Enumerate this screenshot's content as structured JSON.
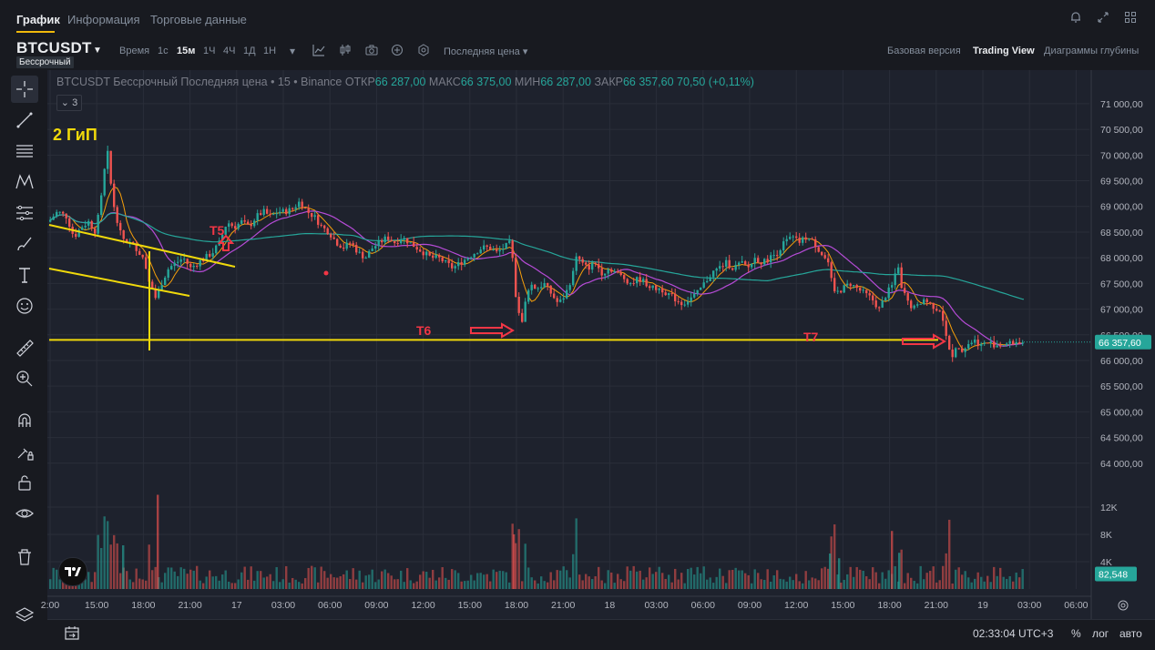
{
  "tabs": [
    "График",
    "Информация",
    "Торговые данные"
  ],
  "symbol": {
    "name": "BTCUSDT",
    "sub": "Бессрочный"
  },
  "timeframes": {
    "label": "Время",
    "items": [
      "1с",
      "15м",
      "1Ч",
      "4Ч",
      "1Д",
      "1Н"
    ],
    "active": "15м"
  },
  "price_type": "Последняя цена",
  "views": [
    "Базовая версия",
    "Trading View",
    "Диаграммы глубины"
  ],
  "active_view": "Trading View",
  "legend": {
    "title": "BTCUSDT Бессрочный Последняя цена • 15 • Binance",
    "o_k": "ОТКР",
    "o_v": "66 287,00",
    "h_k": "МАКС",
    "h_v": "66 375,00",
    "l_k": "МИН",
    "l_v": "66 287,00",
    "c_k": "ЗАКР",
    "c_v": "66 357,60",
    "change": "70,50 (+0,11%)",
    "collapsed_count": "3"
  },
  "bottom": {
    "time": "02:33:04 UTC+3",
    "percent": "%",
    "log": "лог",
    "auto": "авто"
  },
  "icons": {
    "layers": "layers-icon",
    "calendar": "calendar-range-icon",
    "bell": "bell-icon",
    "expand": "expand-icon",
    "grid": "grid-icon"
  },
  "colors": {
    "up": "#26a69a",
    "down": "#ef5350",
    "yellow": "#f0d90b",
    "red_anno": "#f23645"
  },
  "chart_data": {
    "type": "candlestick",
    "interval": "15м",
    "exchange": "Binance",
    "ylim": [
      63500,
      71300
    ],
    "y_ticks": [
      64000,
      64500,
      65000,
      65500,
      66000,
      66500,
      67000,
      67500,
      68000,
      68500,
      69000,
      69500,
      70000,
      70500,
      71000
    ],
    "y_tick_labels": [
      "64 000,00",
      "64 500,00",
      "65 000,00",
      "65 500,00",
      "66 000,00",
      "66 500,00",
      "67 000,00",
      "67 500,00",
      "68 000,00",
      "68 500,00",
      "69 000,00",
      "69 500,00",
      "70 000,00",
      "70 500,00",
      "71 000,00"
    ],
    "volume_ticks": [
      4000,
      8000,
      12000
    ],
    "volume_tick_labels": [
      "4K",
      "8K",
      "12K"
    ],
    "time_ticks": [
      "2:00",
      "15:00",
      "18:00",
      "21:00",
      "17",
      "03:00",
      "06:00",
      "09:00",
      "12:00",
      "15:00",
      "18:00",
      "21:00",
      "18",
      "03:00",
      "06:00",
      "09:00",
      "12:00",
      "15:00",
      "18:00",
      "21:00",
      "19",
      "03:00",
      "06:00"
    ],
    "last_price": 66357.6,
    "last_price_label": "66 357,60",
    "last_volume_label": "82,548",
    "price_path": [
      [
        0,
        68700
      ],
      [
        10,
        68900
      ],
      [
        20,
        68800
      ],
      [
        28,
        68400
      ],
      [
        36,
        68600
      ],
      [
        44,
        68700
      ],
      [
        52,
        68500
      ],
      [
        60,
        69400
      ],
      [
        64,
        70200
      ],
      [
        68,
        69500
      ],
      [
        72,
        69000
      ],
      [
        80,
        68400
      ],
      [
        88,
        68300
      ],
      [
        96,
        68200
      ],
      [
        104,
        68000
      ],
      [
        112,
        67500
      ],
      [
        118,
        67200
      ],
      [
        124,
        67500
      ],
      [
        132,
        67800
      ],
      [
        140,
        67900
      ],
      [
        148,
        68000
      ],
      [
        156,
        67800
      ],
      [
        164,
        67900
      ],
      [
        172,
        68000
      ],
      [
        180,
        68100
      ],
      [
        188,
        68300
      ],
      [
        196,
        68700
      ],
      [
        204,
        68600
      ],
      [
        212,
        68700
      ],
      [
        220,
        68600
      ],
      [
        228,
        68800
      ],
      [
        236,
        68900
      ],
      [
        244,
        68800
      ],
      [
        252,
        68900
      ],
      [
        260,
        68900
      ],
      [
        268,
        68950
      ],
      [
        276,
        69100
      ],
      [
        284,
        68900
      ],
      [
        292,
        68800
      ],
      [
        300,
        68600
      ],
      [
        308,
        68500
      ],
      [
        316,
        68300
      ],
      [
        324,
        68200
      ],
      [
        332,
        68300
      ],
      [
        340,
        68100
      ],
      [
        348,
        68000
      ],
      [
        356,
        68200
      ],
      [
        364,
        68300
      ],
      [
        372,
        68400
      ],
      [
        380,
        68300
      ],
      [
        388,
        68400
      ],
      [
        396,
        68300
      ],
      [
        404,
        68200
      ],
      [
        412,
        68100
      ],
      [
        420,
        68000
      ],
      [
        428,
        68000
      ],
      [
        436,
        67900
      ],
      [
        444,
        67800
      ],
      [
        452,
        67900
      ],
      [
        460,
        68000
      ],
      [
        468,
        68100
      ],
      [
        476,
        68200
      ],
      [
        484,
        68200
      ],
      [
        492,
        68100
      ],
      [
        500,
        68200
      ],
      [
        508,
        68300
      ],
      [
        512,
        67400
      ],
      [
        516,
        66900
      ],
      [
        520,
        66800
      ],
      [
        528,
        67500
      ],
      [
        536,
        67400
      ],
      [
        544,
        67500
      ],
      [
        552,
        67300
      ],
      [
        560,
        67100
      ],
      [
        568,
        67300
      ],
      [
        576,
        67700
      ],
      [
        580,
        68100
      ],
      [
        584,
        67900
      ],
      [
        592,
        67800
      ],
      [
        600,
        67900
      ],
      [
        608,
        67700
      ],
      [
        616,
        67800
      ],
      [
        624,
        67700
      ],
      [
        632,
        67600
      ],
      [
        640,
        67500
      ],
      [
        648,
        67600
      ],
      [
        656,
        67500
      ],
      [
        664,
        67400
      ],
      [
        672,
        67400
      ],
      [
        680,
        67300
      ],
      [
        688,
        67200
      ],
      [
        696,
        67100
      ],
      [
        704,
        67200
      ],
      [
        712,
        67300
      ],
      [
        720,
        67500
      ],
      [
        728,
        67700
      ],
      [
        736,
        67800
      ],
      [
        744,
        67900
      ],
      [
        752,
        67800
      ],
      [
        760,
        67900
      ],
      [
        768,
        67800
      ],
      [
        776,
        68000
      ],
      [
        784,
        67900
      ],
      [
        792,
        68000
      ],
      [
        800,
        68100
      ],
      [
        808,
        68300
      ],
      [
        816,
        68400
      ],
      [
        824,
        68300
      ],
      [
        832,
        68400
      ],
      [
        840,
        68300
      ],
      [
        848,
        68100
      ],
      [
        856,
        67900
      ],
      [
        860,
        67500
      ],
      [
        864,
        67300
      ],
      [
        872,
        67400
      ],
      [
        880,
        67500
      ],
      [
        888,
        67400
      ],
      [
        896,
        67300
      ],
      [
        904,
        67200
      ],
      [
        912,
        67000
      ],
      [
        920,
        67300
      ],
      [
        928,
        67500
      ],
      [
        932,
        68000
      ],
      [
        936,
        67400
      ],
      [
        940,
        67300
      ],
      [
        944,
        67100
      ],
      [
        952,
        67000
      ],
      [
        960,
        67200
      ],
      [
        968,
        67100
      ],
      [
        976,
        67000
      ],
      [
        980,
        67000
      ],
      [
        984,
        66600
      ],
      [
        988,
        66200
      ],
      [
        992,
        66100
      ],
      [
        996,
        66200
      ],
      [
        1000,
        66300
      ],
      [
        1004,
        66200
      ],
      [
        1008,
        66300
      ],
      [
        1016,
        66400
      ],
      [
        1024,
        66300
      ],
      [
        1032,
        66350
      ],
      [
        1040,
        66300
      ],
      [
        1048,
        66320
      ],
      [
        1056,
        66330
      ],
      [
        1060,
        66357
      ]
    ],
    "annotations": [
      {
        "text": "2 ГиП",
        "color": "#f0d90b"
      },
      {
        "text": "T5",
        "color": "#f23645"
      },
      {
        "text": "T6",
        "color": "#f23645"
      },
      {
        "text": "T7",
        "color": "#f23645"
      }
    ],
    "horizontal_level": 66400
  }
}
